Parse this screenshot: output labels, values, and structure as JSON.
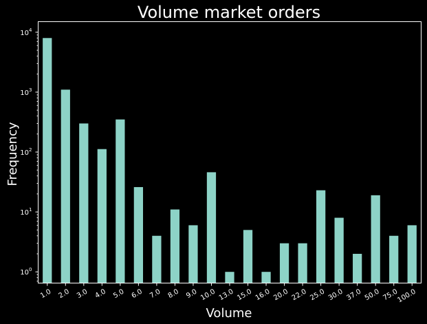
{
  "chart_data": {
    "type": "bar",
    "title": "Volume market orders",
    "xlabel": "Volume",
    "ylabel": "Frequency",
    "y_scale": "log",
    "ylim": [
      0.65,
      15000
    ],
    "y_ticks": [
      {
        "value": 1,
        "mantissa": "10",
        "exponent": "0"
      },
      {
        "value": 10,
        "mantissa": "10",
        "exponent": "1"
      },
      {
        "value": 100,
        "mantissa": "10",
        "exponent": "2"
      },
      {
        "value": 1000,
        "mantissa": "10",
        "exponent": "3"
      },
      {
        "value": 10000,
        "mantissa": "10",
        "exponent": "4"
      }
    ],
    "categories": [
      "1.0",
      "2.0",
      "3.0",
      "4.0",
      "5.0",
      "6.0",
      "7.0",
      "8.0",
      "9.0",
      "10.0",
      "13.0",
      "15.0",
      "16.0",
      "20.0",
      "22.0",
      "25.0",
      "30.0",
      "37.0",
      "50.0",
      "75.0",
      "100.0"
    ],
    "values": [
      8000,
      1100,
      300,
      112,
      350,
      26,
      4,
      11,
      6,
      46,
      1,
      5,
      1,
      3,
      3,
      23,
      8,
      2,
      19,
      4,
      6
    ],
    "bar_color": "#8dd3c7",
    "background_color": "#000000",
    "axis_color": "#ffffff",
    "grid": false,
    "legend": "none"
  }
}
